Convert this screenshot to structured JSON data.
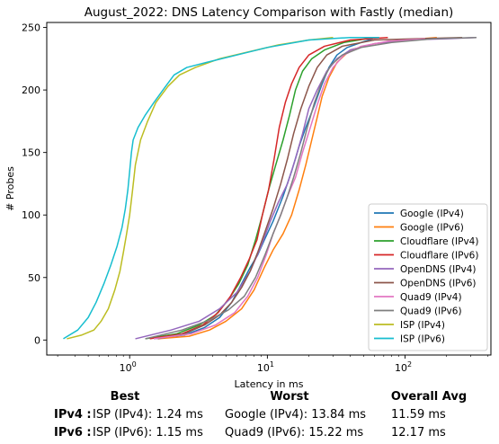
{
  "chart_data": {
    "type": "line",
    "title": "August_2022: DNS Latency Comparison with Fastly (median)",
    "xlabel": "Latency in ms",
    "ylabel": "# Probes",
    "xscale": "log",
    "xlim": [
      0.25,
      420
    ],
    "ylim": [
      -12,
      254
    ],
    "x_ticks": [
      {
        "value": 1,
        "base": "10",
        "exp": "0"
      },
      {
        "value": 10,
        "base": "10",
        "exp": "1"
      },
      {
        "value": 100,
        "base": "10",
        "exp": "2"
      }
    ],
    "y_ticks": [
      0,
      50,
      100,
      150,
      200,
      250
    ],
    "legend_position": "lower right",
    "grid": false,
    "series": [
      {
        "name": "Google (IPv4)",
        "color": "#1f77b4",
        "points": [
          [
            1.5,
            1
          ],
          [
            2.5,
            4
          ],
          [
            3.5,
            10
          ],
          [
            4.5,
            18
          ],
          [
            5.5,
            30
          ],
          [
            6.5,
            45
          ],
          [
            7.5,
            58
          ],
          [
            8.5,
            68
          ],
          [
            9.5,
            80
          ],
          [
            11,
            95
          ],
          [
            13,
            115
          ],
          [
            15,
            135
          ],
          [
            17,
            155
          ],
          [
            19,
            170
          ],
          [
            22,
            188
          ],
          [
            25,
            205
          ],
          [
            28,
            218
          ],
          [
            32,
            228
          ],
          [
            38,
            234
          ],
          [
            48,
            238
          ],
          [
            62,
            242
          ]
        ]
      },
      {
        "name": "Google (IPv6)",
        "color": "#ff7f0e",
        "points": [
          [
            1.6,
            1
          ],
          [
            2.7,
            3
          ],
          [
            3.8,
            8
          ],
          [
            5,
            15
          ],
          [
            6.5,
            25
          ],
          [
            8,
            40
          ],
          [
            9.5,
            58
          ],
          [
            11,
            72
          ],
          [
            13,
            85
          ],
          [
            15,
            100
          ],
          [
            17,
            120
          ],
          [
            19,
            140
          ],
          [
            21,
            160
          ],
          [
            23,
            178
          ],
          [
            25,
            195
          ],
          [
            28,
            210
          ],
          [
            32,
            222
          ],
          [
            40,
            232
          ],
          [
            60,
            237
          ],
          [
            100,
            240
          ],
          [
            170,
            242
          ]
        ]
      },
      {
        "name": "Cloudflare (IPv4)",
        "color": "#2ca02c",
        "points": [
          [
            1.3,
            1
          ],
          [
            2.2,
            5
          ],
          [
            3.2,
            12
          ],
          [
            4.2,
            20
          ],
          [
            5.2,
            32
          ],
          [
            6.2,
            45
          ],
          [
            7.2,
            60
          ],
          [
            8.2,
            80
          ],
          [
            9.2,
            100
          ],
          [
            10.2,
            120
          ],
          [
            11.5,
            140
          ],
          [
            13,
            160
          ],
          [
            14.5,
            180
          ],
          [
            16,
            200
          ],
          [
            18,
            215
          ],
          [
            21,
            225
          ],
          [
            26,
            232
          ],
          [
            36,
            238
          ],
          [
            60,
            242
          ]
        ]
      },
      {
        "name": "Cloudflare (IPv6)",
        "color": "#d62728",
        "points": [
          [
            1.4,
            1
          ],
          [
            2.4,
            5
          ],
          [
            3.4,
            12
          ],
          [
            4.4,
            22
          ],
          [
            5.4,
            35
          ],
          [
            6.4,
            50
          ],
          [
            7.4,
            65
          ],
          [
            8.4,
            80
          ],
          [
            9.2,
            100
          ],
          [
            10.2,
            120
          ],
          [
            11.2,
            145
          ],
          [
            12.2,
            170
          ],
          [
            13.5,
            190
          ],
          [
            15,
            205
          ],
          [
            17,
            218
          ],
          [
            20,
            228
          ],
          [
            26,
            235
          ],
          [
            40,
            240
          ],
          [
            75,
            242
          ]
        ]
      },
      {
        "name": "OpenDNS (IPv4)",
        "color": "#9467bd",
        "points": [
          [
            1.1,
            1
          ],
          [
            2,
            8
          ],
          [
            3.2,
            15
          ],
          [
            4.5,
            25
          ],
          [
            6,
            38
          ],
          [
            7.5,
            55
          ],
          [
            9,
            75
          ],
          [
            10.5,
            95
          ],
          [
            12,
            110
          ],
          [
            14,
            125
          ],
          [
            16,
            145
          ],
          [
            18,
            165
          ],
          [
            20,
            185
          ],
          [
            23,
            200
          ],
          [
            27,
            215
          ],
          [
            32,
            225
          ],
          [
            40,
            232
          ],
          [
            60,
            237
          ],
          [
            100,
            240
          ],
          [
            200,
            241
          ],
          [
            330,
            242
          ]
        ]
      },
      {
        "name": "OpenDNS (IPv6)",
        "color": "#8c564b",
        "points": [
          [
            1.6,
            1
          ],
          [
            2.5,
            5
          ],
          [
            3.5,
            12
          ],
          [
            4.5,
            20
          ],
          [
            5.5,
            30
          ],
          [
            6.5,
            42
          ],
          [
            7.5,
            55
          ],
          [
            8.5,
            70
          ],
          [
            9.5,
            85
          ],
          [
            11,
            105
          ],
          [
            12.5,
            125
          ],
          [
            14,
            145
          ],
          [
            15.5,
            165
          ],
          [
            17.5,
            185
          ],
          [
            20,
            203
          ],
          [
            23,
            218
          ],
          [
            27,
            228
          ],
          [
            35,
            235
          ],
          [
            60,
            240
          ],
          [
            120,
            241
          ],
          [
            260,
            242
          ]
        ]
      },
      {
        "name": "Quad9 (IPv4)",
        "color": "#e377c2",
        "points": [
          [
            1.5,
            1
          ],
          [
            2.8,
            5
          ],
          [
            4.2,
            12
          ],
          [
            5.8,
            22
          ],
          [
            7.2,
            35
          ],
          [
            8.5,
            50
          ],
          [
            9.8,
            68
          ],
          [
            11,
            85
          ],
          [
            12.5,
            100
          ],
          [
            14,
            115
          ],
          [
            16,
            130
          ],
          [
            18,
            150
          ],
          [
            20.5,
            170
          ],
          [
            23,
            188
          ],
          [
            26,
            205
          ],
          [
            30,
            218
          ],
          [
            36,
            228
          ],
          [
            48,
            235
          ],
          [
            75,
            239
          ],
          [
            140,
            241
          ]
        ]
      },
      {
        "name": "Quad9 (IPv6)",
        "color": "#7f7f7f",
        "points": [
          [
            1.3,
            1
          ],
          [
            2.4,
            8
          ],
          [
            3.8,
            16
          ],
          [
            5.2,
            24
          ],
          [
            6.8,
            35
          ],
          [
            8.2,
            50
          ],
          [
            9.6,
            68
          ],
          [
            11,
            85
          ],
          [
            12.5,
            100
          ],
          [
            14,
            115
          ],
          [
            15.5,
            130
          ],
          [
            17.5,
            150
          ],
          [
            19.5,
            170
          ],
          [
            22,
            190
          ],
          [
            25,
            207
          ],
          [
            29,
            220
          ],
          [
            35,
            228
          ],
          [
            48,
            234
          ],
          [
            80,
            238
          ],
          [
            160,
            241
          ],
          [
            330,
            242
          ]
        ]
      },
      {
        "name": "ISP (IPv4)",
        "color": "#bcbd22",
        "points": [
          [
            0.35,
            1
          ],
          [
            0.45,
            4
          ],
          [
            0.55,
            8
          ],
          [
            0.62,
            15
          ],
          [
            0.7,
            25
          ],
          [
            0.78,
            40
          ],
          [
            0.85,
            55
          ],
          [
            0.9,
            70
          ],
          [
            0.95,
            85
          ],
          [
            1.0,
            100
          ],
          [
            1.05,
            120
          ],
          [
            1.1,
            140
          ],
          [
            1.2,
            160
          ],
          [
            1.35,
            175
          ],
          [
            1.55,
            190
          ],
          [
            1.9,
            203
          ],
          [
            2.3,
            212
          ],
          [
            3,
            218
          ],
          [
            4.5,
            225
          ],
          [
            7,
            230
          ],
          [
            12,
            236
          ],
          [
            20,
            240
          ],
          [
            30,
            242
          ]
        ]
      },
      {
        "name": "ISP (IPv6)",
        "color": "#17becf",
        "points": [
          [
            0.33,
            1
          ],
          [
            0.42,
            8
          ],
          [
            0.5,
            18
          ],
          [
            0.57,
            30
          ],
          [
            0.65,
            45
          ],
          [
            0.73,
            60
          ],
          [
            0.81,
            75
          ],
          [
            0.88,
            90
          ],
          [
            0.93,
            105
          ],
          [
            0.97,
            120
          ],
          [
            1.0,
            135
          ],
          [
            1.03,
            150
          ],
          [
            1.06,
            160
          ],
          [
            1.15,
            170
          ],
          [
            1.3,
            180
          ],
          [
            1.5,
            190
          ],
          [
            1.8,
            202
          ],
          [
            2.1,
            212
          ],
          [
            2.6,
            218
          ],
          [
            3.6,
            222
          ],
          [
            6,
            228
          ],
          [
            10,
            234
          ],
          [
            20,
            240
          ],
          [
            40,
            242
          ],
          [
            65,
            242
          ]
        ]
      }
    ]
  },
  "stats": {
    "headers": {
      "best": "Best",
      "worst": "Worst",
      "avg": "Overall Avg"
    },
    "rows": [
      {
        "label": "IPv4 :",
        "best": "ISP (IPv4): 1.24 ms",
        "worst": "Google (IPv4): 13.84 ms",
        "avg": "11.59 ms"
      },
      {
        "label": "IPv6 :",
        "best": "ISP (IPv6): 1.15 ms",
        "worst": "Quad9 (IPv6): 15.22 ms",
        "avg": "12.17 ms"
      }
    ]
  }
}
